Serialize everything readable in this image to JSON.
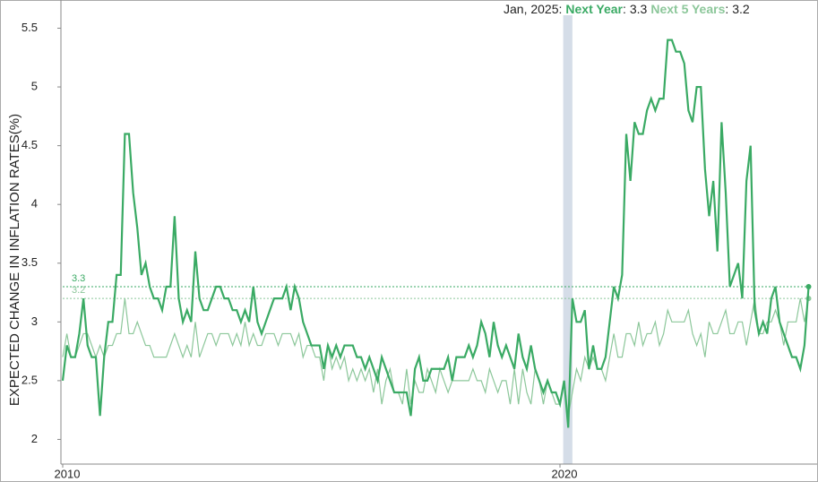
{
  "chart_data": {
    "type": "line",
    "ylabel": "EXPECTED CHANGE IN INFLATION RATES(%)",
    "separator": ":",
    "categories": [
      "Jan, 2010",
      "Feb, 2010",
      "Mar, 2010",
      "Apr, 2010",
      "May, 2010",
      "Jun, 2010",
      "Jul, 2010",
      "Aug, 2010",
      "Sep, 2010",
      "Oct, 2010",
      "Nov, 2010",
      "Dec, 2010",
      "Jan, 2011",
      "Feb, 2011",
      "Mar, 2011",
      "Apr, 2011",
      "May, 2011",
      "Jun, 2011",
      "Jul, 2011",
      "Aug, 2011",
      "Sep, 2011",
      "Oct, 2011",
      "Nov, 2011",
      "Dec, 2011",
      "Jan, 2012",
      "Feb, 2012",
      "Mar, 2012",
      "Apr, 2012",
      "May, 2012",
      "Jun, 2012",
      "Jul, 2012",
      "Aug, 2012",
      "Sep, 2012",
      "Oct, 2012",
      "Nov, 2012",
      "Dec, 2012",
      "Jan, 2013",
      "Feb, 2013",
      "Mar, 2013",
      "Apr, 2013",
      "May, 2013",
      "Jun, 2013",
      "Jul, 2013",
      "Aug, 2013",
      "Sep, 2013",
      "Oct, 2013",
      "Nov, 2013",
      "Dec, 2013",
      "Jan, 2014",
      "Feb, 2014",
      "Mar, 2014",
      "Apr, 2014",
      "May, 2014",
      "Jun, 2014",
      "Jul, 2014",
      "Aug, 2014",
      "Sep, 2014",
      "Oct, 2014",
      "Nov, 2014",
      "Dec, 2014",
      "Jan, 2015",
      "Feb, 2015",
      "Mar, 2015",
      "Apr, 2015",
      "May, 2015",
      "Jun, 2015",
      "Jul, 2015",
      "Aug, 2015",
      "Sep, 2015",
      "Oct, 2015",
      "Nov, 2015",
      "Dec, 2015",
      "Jan, 2016",
      "Feb, 2016",
      "Mar, 2016",
      "Apr, 2016",
      "May, 2016",
      "Jun, 2016",
      "Jul, 2016",
      "Aug, 2016",
      "Sep, 2016",
      "Oct, 2016",
      "Nov, 2016",
      "Dec, 2016",
      "Jan, 2017",
      "Feb, 2017",
      "Mar, 2017",
      "Apr, 2017",
      "May, 2017",
      "Jun, 2017",
      "Jul, 2017",
      "Aug, 2017",
      "Sep, 2017",
      "Oct, 2017",
      "Nov, 2017",
      "Dec, 2017",
      "Jan, 2018",
      "Feb, 2018",
      "Mar, 2018",
      "Apr, 2018",
      "May, 2018",
      "Jun, 2018",
      "Jul, 2018",
      "Aug, 2018",
      "Sep, 2018",
      "Oct, 2018",
      "Nov, 2018",
      "Dec, 2018",
      "Jan, 2019",
      "Feb, 2019",
      "Mar, 2019",
      "Apr, 2019",
      "May, 2019",
      "Jun, 2019",
      "Jul, 2019",
      "Aug, 2019",
      "Sep, 2019",
      "Oct, 2019",
      "Nov, 2019",
      "Dec, 2019",
      "Jan, 2020",
      "Feb, 2020",
      "Mar, 2020",
      "Apr, 2020",
      "May, 2020",
      "Jun, 2020",
      "Jul, 2020",
      "Aug, 2020",
      "Sep, 2020",
      "Oct, 2020",
      "Nov, 2020",
      "Dec, 2020",
      "Jan, 2021",
      "Feb, 2021",
      "Mar, 2021",
      "Apr, 2021",
      "May, 2021",
      "Jun, 2021",
      "Jul, 2021",
      "Aug, 2021",
      "Sep, 2021",
      "Oct, 2021",
      "Nov, 2021",
      "Dec, 2021",
      "Jan, 2022",
      "Feb, 2022",
      "Mar, 2022",
      "Apr, 2022",
      "May, 2022",
      "Jun, 2022",
      "Jul, 2022",
      "Aug, 2022",
      "Sep, 2022",
      "Oct, 2022",
      "Nov, 2022",
      "Dec, 2022",
      "Jan, 2023",
      "Feb, 2023",
      "Mar, 2023",
      "Apr, 2023",
      "May, 2023",
      "Jun, 2023",
      "Jul, 2023",
      "Aug, 2023",
      "Sep, 2023",
      "Oct, 2023",
      "Nov, 2023",
      "Dec, 2023",
      "Jan, 2024",
      "Feb, 2024",
      "Mar, 2024",
      "Apr, 2024",
      "May, 2024",
      "Jun, 2024",
      "Jul, 2024",
      "Aug, 2024",
      "Sep, 2024",
      "Oct, 2024",
      "Nov, 2024",
      "Dec, 2024",
      "Jan, 2025"
    ],
    "series": [
      {
        "name": "Next Year",
        "color": "#3aaa64",
        "values": [
          2.5,
          2.8,
          2.7,
          2.7,
          2.9,
          3.2,
          2.8,
          2.7,
          2.7,
          2.2,
          2.7,
          3.0,
          3.0,
          3.4,
          3.4,
          4.6,
          4.6,
          4.1,
          3.8,
          3.4,
          3.5,
          3.3,
          3.2,
          3.2,
          3.1,
          3.3,
          3.3,
          3.9,
          3.2,
          3.0,
          3.1,
          3.0,
          3.6,
          3.2,
          3.1,
          3.1,
          3.2,
          3.3,
          3.3,
          3.2,
          3.2,
          3.1,
          3.1,
          3.0,
          3.1,
          3.0,
          3.3,
          3.0,
          2.9,
          3.0,
          3.1,
          3.2,
          3.2,
          3.2,
          3.3,
          3.1,
          3.3,
          3.2,
          3.0,
          2.9,
          2.8,
          2.8,
          2.8,
          2.6,
          2.8,
          2.7,
          2.8,
          2.7,
          2.8,
          2.8,
          2.8,
          2.7,
          2.7,
          2.6,
          2.7,
          2.6,
          2.5,
          2.7,
          2.6,
          2.5,
          2.4,
          2.4,
          2.4,
          2.4,
          2.2,
          2.6,
          2.7,
          2.5,
          2.5,
          2.6,
          2.6,
          2.6,
          2.6,
          2.7,
          2.5,
          2.7,
          2.7,
          2.7,
          2.8,
          2.7,
          2.8,
          3.0,
          2.9,
          2.7,
          3.0,
          2.8,
          2.7,
          2.8,
          2.7,
          2.6,
          2.9,
          2.7,
          2.6,
          2.8,
          2.6,
          2.5,
          2.4,
          2.5,
          2.4,
          2.4,
          2.3,
          2.5,
          2.1,
          3.2,
          3.0,
          3.0,
          3.1,
          2.6,
          2.8,
          2.6,
          2.6,
          2.7,
          3.0,
          3.3,
          3.2,
          3.4,
          4.6,
          4.2,
          4.7,
          4.6,
          4.6,
          4.8,
          4.9,
          4.8,
          4.9,
          4.9,
          5.4,
          5.4,
          5.3,
          5.3,
          5.2,
          4.8,
          4.7,
          5.0,
          5.0,
          4.3,
          3.9,
          4.2,
          3.6,
          4.7,
          4.1,
          3.3,
          3.4,
          3.5,
          3.2,
          4.2,
          4.5,
          3.1,
          2.9,
          3.0,
          2.9,
          3.2,
          3.3,
          3.0,
          2.9,
          2.8,
          2.7,
          2.7,
          2.6,
          2.8,
          3.3
        ]
      },
      {
        "name": "Next 5 Years",
        "color": "#8cc79a",
        "values": [
          2.7,
          2.9,
          2.7,
          2.7,
          2.8,
          2.9,
          2.9,
          2.8,
          2.7,
          2.8,
          2.7,
          2.8,
          2.8,
          2.9,
          2.9,
          3.2,
          2.9,
          2.9,
          3.0,
          2.9,
          2.8,
          2.8,
          2.7,
          2.7,
          2.7,
          2.7,
          2.8,
          2.9,
          2.8,
          2.7,
          2.8,
          2.7,
          3.0,
          2.7,
          2.8,
          2.9,
          2.9,
          2.8,
          2.9,
          2.9,
          2.9,
          2.8,
          2.9,
          2.8,
          3.0,
          2.8,
          2.9,
          2.8,
          2.8,
          2.9,
          2.9,
          2.9,
          2.8,
          2.9,
          2.9,
          2.9,
          2.8,
          2.9,
          2.7,
          2.8,
          2.8,
          2.7,
          2.7,
          2.5,
          2.8,
          2.6,
          2.7,
          2.6,
          2.7,
          2.5,
          2.6,
          2.5,
          2.6,
          2.5,
          2.6,
          2.4,
          2.6,
          2.3,
          2.5,
          2.6,
          2.4,
          2.4,
          2.3,
          2.6,
          2.3,
          2.5,
          2.4,
          2.4,
          2.6,
          2.5,
          2.4,
          2.6,
          2.5,
          2.4,
          2.5,
          2.5,
          2.5,
          2.5,
          2.5,
          2.6,
          2.5,
          2.5,
          2.4,
          2.6,
          2.5,
          2.4,
          2.5,
          2.5,
          2.3,
          2.6,
          2.3,
          2.6,
          2.4,
          2.3,
          2.6,
          2.5,
          2.3,
          2.5,
          2.4,
          2.3,
          2.3,
          2.5,
          2.2,
          2.4,
          2.6,
          2.5,
          2.7,
          2.6,
          2.7,
          2.6,
          2.6,
          2.5,
          2.7,
          2.9,
          2.7,
          2.7,
          2.9,
          2.9,
          2.8,
          3.0,
          2.8,
          2.9,
          2.9,
          3.0,
          2.8,
          2.9,
          3.1,
          3.0,
          3.0,
          3.0,
          3.0,
          3.1,
          2.9,
          2.8,
          2.9,
          2.7,
          3.0,
          2.9,
          2.9,
          3.0,
          3.1,
          2.9,
          2.9,
          3.0,
          3.0,
          2.8,
          3.0,
          3.2,
          2.9,
          2.9,
          3.0,
          3.0,
          3.1,
          3.0,
          2.8,
          3.0,
          3.0,
          3.0,
          3.2,
          3.0,
          3.2
        ]
      }
    ],
    "shade": [
      "Feb, 2020",
      "Apr, 2020"
    ],
    "xticks": [
      {
        "value": "Jan, 2010",
        "label": "2010"
      },
      {
        "value": "Jan, 2020",
        "label": "2020"
      }
    ],
    "ylim": [
      1.79,
      5.74
    ],
    "yticks": [
      2,
      2.5,
      3,
      3.5,
      4,
      4.5,
      5,
      5.5
    ]
  }
}
